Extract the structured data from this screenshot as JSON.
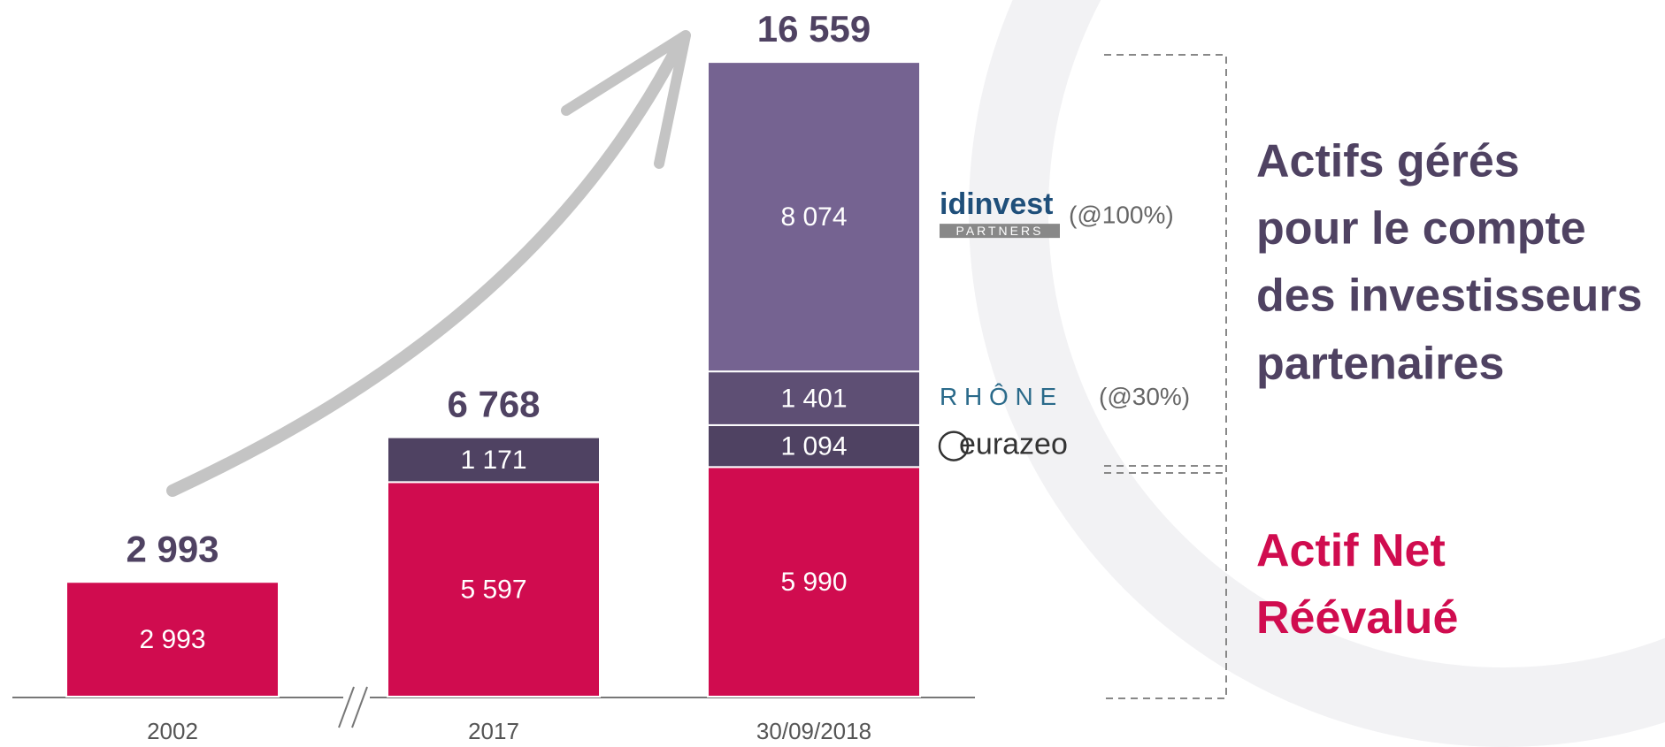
{
  "chart_data": {
    "type": "stacked-bar",
    "categories": [
      "2002",
      "2017",
      "30/09/2018"
    ],
    "series": [
      {
        "name": "Actif Net Réévalué",
        "color": "#d00c4f",
        "values": [
          2993,
          5597,
          5990
        ],
        "value_labels": [
          "2 993",
          "5 597",
          "5 990"
        ]
      },
      {
        "name": "eurazeo",
        "color": "#4f4262",
        "values": [
          null,
          1171,
          1094
        ],
        "value_labels": [
          null,
          "1 171",
          "1 094"
        ]
      },
      {
        "name": "R H Ô N E",
        "note_label": "(@30%)",
        "color": "#5e4f74",
        "values": [
          null,
          null,
          1401
        ],
        "value_labels": [
          null,
          null,
          "1 401"
        ]
      },
      {
        "name": "idinvest",
        "sub_label": "PARTNERS",
        "note_label": "(@100%)",
        "color": "#756391",
        "values": [
          null,
          null,
          8074
        ],
        "value_labels": [
          null,
          null,
          "8 074"
        ]
      }
    ],
    "totals": [
      2993,
      6768,
      16559
    ],
    "total_labels": [
      "2 993",
      "6 768",
      "16 559"
    ],
    "managed_label": [
      "Actifs gérés",
      "pour le compte",
      "des investisseurs",
      "partenaires"
    ],
    "ylim": [
      0,
      17000
    ]
  }
}
